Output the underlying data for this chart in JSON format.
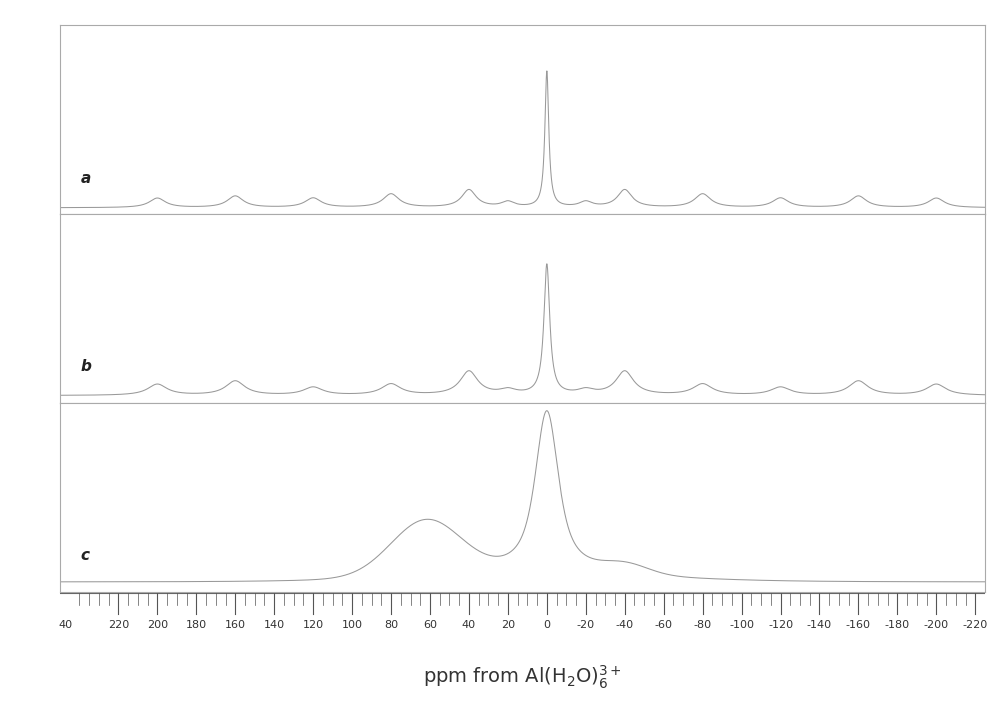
{
  "x_min": 250,
  "x_max": -225,
  "x_ticks_major": [
    220,
    200,
    180,
    160,
    140,
    120,
    100,
    80,
    60,
    40,
    20,
    0,
    -20,
    -40,
    -60,
    -80,
    -100,
    -120,
    -140,
    -160,
    -180,
    -200,
    -220
  ],
  "x_tick_first": 40,
  "line_color": "#999999",
  "border_color": "#aaaaaa",
  "background_color": "#ffffff",
  "label_a": "a",
  "label_b": "b",
  "label_c": "c",
  "label_fontsize": 11,
  "xlabel_fontsize": 14,
  "tick_fontsize": 8,
  "fig_width": 10.0,
  "fig_height": 7.17,
  "dpi": 100
}
